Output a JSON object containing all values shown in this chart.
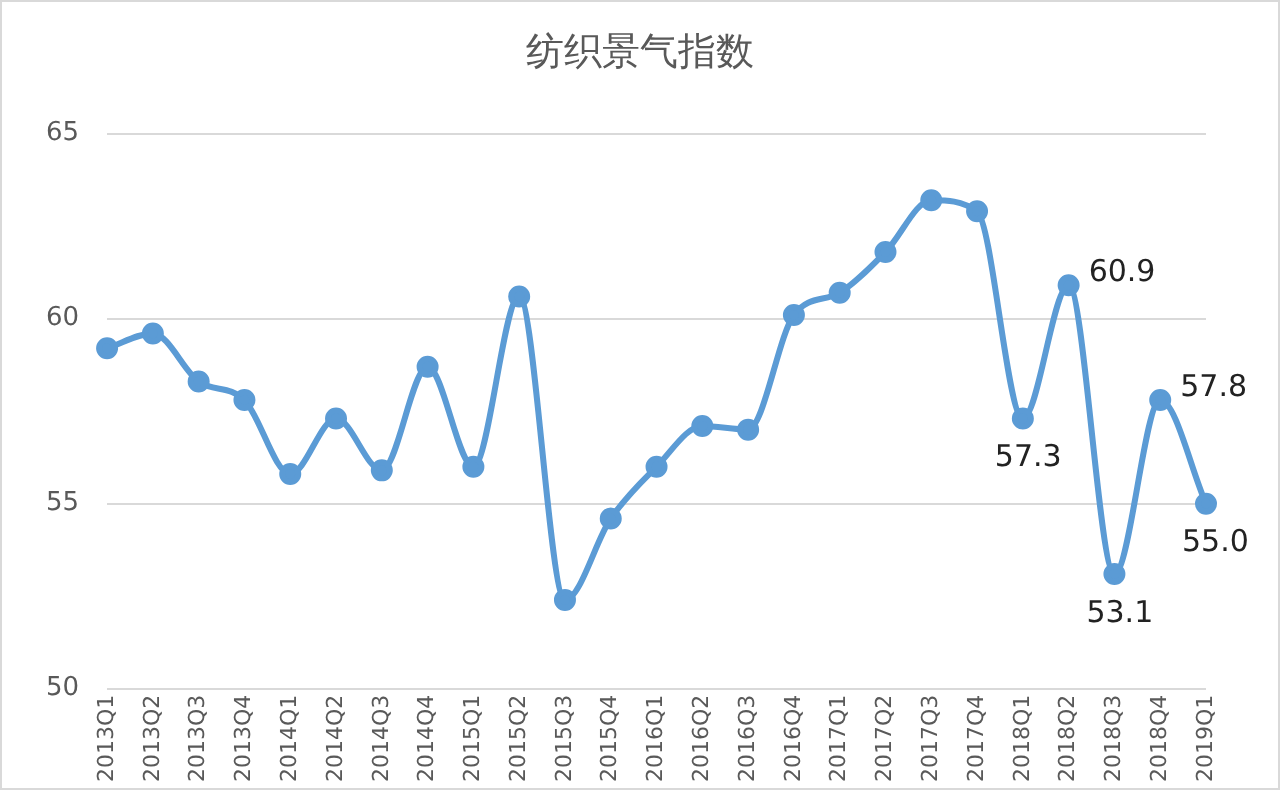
{
  "chart_data": {
    "type": "line",
    "title": "纺织景气指数",
    "categories": [
      "2013Q1",
      "2013Q2",
      "2013Q3",
      "2013Q4",
      "2014Q1",
      "2014Q2",
      "2014Q3",
      "2014Q4",
      "2015Q1",
      "2015Q2",
      "2015Q3",
      "2015Q4",
      "2016Q1",
      "2016Q2",
      "2016Q3",
      "2016Q4",
      "2017Q1",
      "2017Q2",
      "2017Q3",
      "2017Q4",
      "2018Q1",
      "2018Q2",
      "2018Q3",
      "2018Q4",
      "2019Q1"
    ],
    "series": [
      {
        "color": "#5b9bd5",
        "values": [
          59.2,
          59.6,
          58.3,
          57.8,
          55.8,
          57.3,
          55.9,
          58.7,
          56.0,
          60.6,
          52.4,
          54.6,
          56.0,
          57.1,
          57.0,
          60.1,
          60.7,
          61.8,
          63.2,
          62.9,
          57.3,
          60.9,
          53.1,
          57.8,
          55.0
        ],
        "value_labels": [
          null,
          null,
          null,
          null,
          null,
          null,
          null,
          null,
          null,
          null,
          null,
          null,
          null,
          null,
          null,
          null,
          null,
          null,
          null,
          null,
          "57.3",
          "60.9",
          "53.1",
          "57.8",
          "55.0"
        ]
      }
    ],
    "ylim": [
      50,
      65
    ],
    "yticks": [
      50,
      55,
      60,
      65
    ],
    "grid": "y",
    "legend": false,
    "marker": "circle",
    "line_style": "solid"
  }
}
